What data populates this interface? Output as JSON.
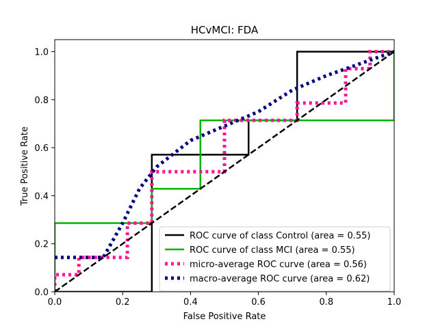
{
  "chart_data": {
    "type": "line",
    "title": "HCvMCI: FDA",
    "xlabel": "False Positive Rate",
    "ylabel": "True Positive Rate",
    "xlim": [
      0.0,
      1.0
    ],
    "ylim": [
      0.0,
      1.05
    ],
    "xticks": [
      "0.0",
      "0.2",
      "0.4",
      "0.6",
      "0.8",
      "1.0"
    ],
    "yticks": [
      "0.0",
      "0.2",
      "0.4",
      "0.6",
      "0.8",
      "1.0"
    ],
    "grid": false,
    "legend_position": "lower-right",
    "series": [
      {
        "name": "ROC curve of class  Control (area = 0.55)",
        "color": "#000000",
        "style": "solid",
        "x": [
          0.0,
          0.286,
          0.286,
          0.571,
          0.571,
          0.714,
          0.714,
          1.0
        ],
        "y": [
          0.0,
          0.0,
          0.571,
          0.571,
          0.714,
          0.714,
          1.0,
          1.0
        ]
      },
      {
        "name": "ROC curve of class  MCI (area = 0.55)",
        "color": "#00b400",
        "style": "solid",
        "x": [
          0.0,
          0.0,
          0.286,
          0.286,
          0.429,
          0.429,
          1.0,
          1.0
        ],
        "y": [
          0.0,
          0.286,
          0.286,
          0.429,
          0.429,
          0.714,
          0.714,
          1.0
        ]
      },
      {
        "name": "micro-average ROC curve (area = 0.56)",
        "color": "#ff1493",
        "style": "dotted",
        "x": [
          0.0,
          0.0,
          0.071,
          0.071,
          0.143,
          0.143,
          0.214,
          0.214,
          0.286,
          0.286,
          0.5,
          0.5,
          0.714,
          0.714,
          0.857,
          0.857,
          0.929,
          0.929,
          1.0
        ],
        "y": [
          0.0,
          0.071,
          0.071,
          0.143,
          0.143,
          0.143,
          0.143,
          0.286,
          0.286,
          0.5,
          0.5,
          0.714,
          0.714,
          0.786,
          0.786,
          0.929,
          0.929,
          1.0,
          1.0
        ]
      },
      {
        "name": "macro-average ROC curve (area = 0.62)",
        "color": "#000080",
        "style": "dotted",
        "x": [
          0.0,
          0.143,
          0.2,
          0.25,
          0.3,
          0.4,
          0.5,
          0.6,
          0.7,
          0.8,
          0.9,
          1.0
        ],
        "y": [
          0.143,
          0.143,
          0.286,
          0.43,
          0.52,
          0.63,
          0.69,
          0.75,
          0.84,
          0.9,
          0.95,
          1.0
        ]
      },
      {
        "name": "",
        "color": "#000000",
        "style": "dashed",
        "x": [
          0.0,
          1.0
        ],
        "y": [
          0.0,
          1.0
        ]
      }
    ]
  }
}
